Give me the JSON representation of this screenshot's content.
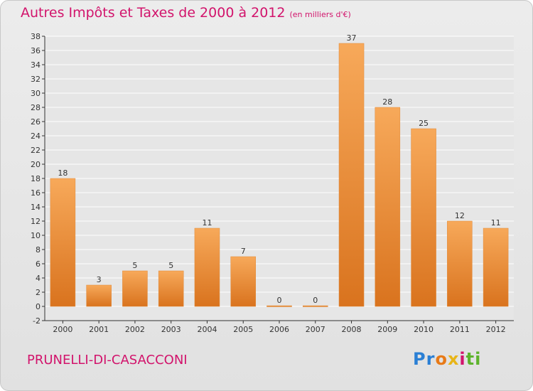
{
  "title": "Autres Impôts et Taxes de 2000 à 2012",
  "subtitle": "(en milliers d'€)",
  "commune": "PRUNELLI-DI-CASACCONI",
  "logo": {
    "parts": [
      "Pr",
      "o",
      "x",
      "i",
      "ti"
    ]
  },
  "colors": {
    "title": "#d2146c",
    "bar_light": "#f7a95a",
    "bar_dark": "#d9731e",
    "grid": "#ffffff"
  },
  "chart_data": {
    "type": "bar",
    "categories": [
      "2000",
      "2001",
      "2002",
      "2003",
      "2004",
      "2005",
      "2006",
      "2007",
      "2008",
      "2009",
      "2010",
      "2011",
      "2012"
    ],
    "values": [
      18,
      3,
      5,
      5,
      11,
      7,
      0,
      0,
      37,
      28,
      25,
      12,
      11
    ],
    "ylim": [
      -2,
      38
    ],
    "yticks": [
      -2,
      0,
      2,
      4,
      6,
      8,
      10,
      12,
      14,
      16,
      18,
      20,
      22,
      24,
      26,
      28,
      30,
      32,
      34,
      36,
      38
    ],
    "grid": true
  }
}
